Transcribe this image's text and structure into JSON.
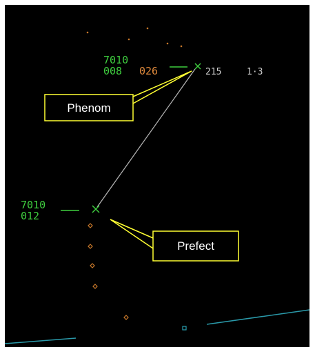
{
  "tracks": [
    {
      "squawk": "7010",
      "altitude": "008",
      "speed": "026",
      "heading": "215",
      "range": "1·3"
    },
    {
      "squawk": "7010",
      "altitude": "012"
    }
  ],
  "callouts": [
    {
      "label": "Phenom"
    },
    {
      "label": "Prefect"
    }
  ]
}
